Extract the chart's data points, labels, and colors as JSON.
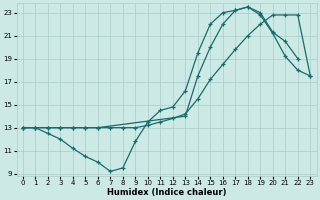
{
  "xlabel": "Humidex (Indice chaleur)",
  "bg_color": "#cce9e5",
  "grid_color": "#aaccc8",
  "line_color": "#1a6b6b",
  "xlim": [
    -0.5,
    23.5
  ],
  "ylim": [
    8.8,
    23.8
  ],
  "xticks": [
    0,
    1,
    2,
    3,
    4,
    5,
    6,
    7,
    8,
    9,
    10,
    11,
    12,
    13,
    14,
    15,
    16,
    17,
    18,
    19,
    20,
    21,
    22,
    23
  ],
  "yticks": [
    9,
    11,
    13,
    15,
    17,
    19,
    21,
    23
  ],
  "line1_x": [
    0,
    1,
    2,
    3,
    4,
    5,
    6,
    7,
    8,
    9,
    10,
    11,
    12,
    13,
    14,
    15,
    16,
    17,
    18,
    19,
    20,
    21,
    22
  ],
  "line1_y": [
    13,
    13,
    12.5,
    12,
    11.2,
    10.5,
    10.0,
    9.2,
    9.5,
    11.8,
    13.5,
    14.5,
    14.8,
    16.2,
    19.5,
    22.0,
    23.0,
    23.2,
    23.5,
    23.0,
    21.3,
    20.5,
    19.0
  ],
  "line2_x": [
    0,
    1,
    2,
    3,
    4,
    5,
    6,
    7,
    8,
    9,
    10,
    11,
    12,
    13,
    14,
    15,
    16,
    17,
    18,
    19,
    20,
    21,
    22,
    23
  ],
  "line2_y": [
    13,
    13,
    13,
    13,
    13,
    13,
    13,
    13,
    13,
    13,
    13.2,
    13.5,
    13.8,
    14.2,
    15.5,
    17.2,
    18.5,
    19.8,
    21.0,
    22.0,
    22.8,
    22.8,
    22.8,
    17.5
  ],
  "line3_x": [
    0,
    1,
    2,
    3,
    4,
    5,
    6,
    13,
    14,
    15,
    16,
    17,
    18,
    19,
    20,
    21,
    22,
    23
  ],
  "line3_y": [
    13,
    13,
    13,
    13,
    13,
    13,
    13,
    14.0,
    17.5,
    20.0,
    22.0,
    23.2,
    23.5,
    22.8,
    21.2,
    19.2,
    18.0,
    17.5
  ]
}
